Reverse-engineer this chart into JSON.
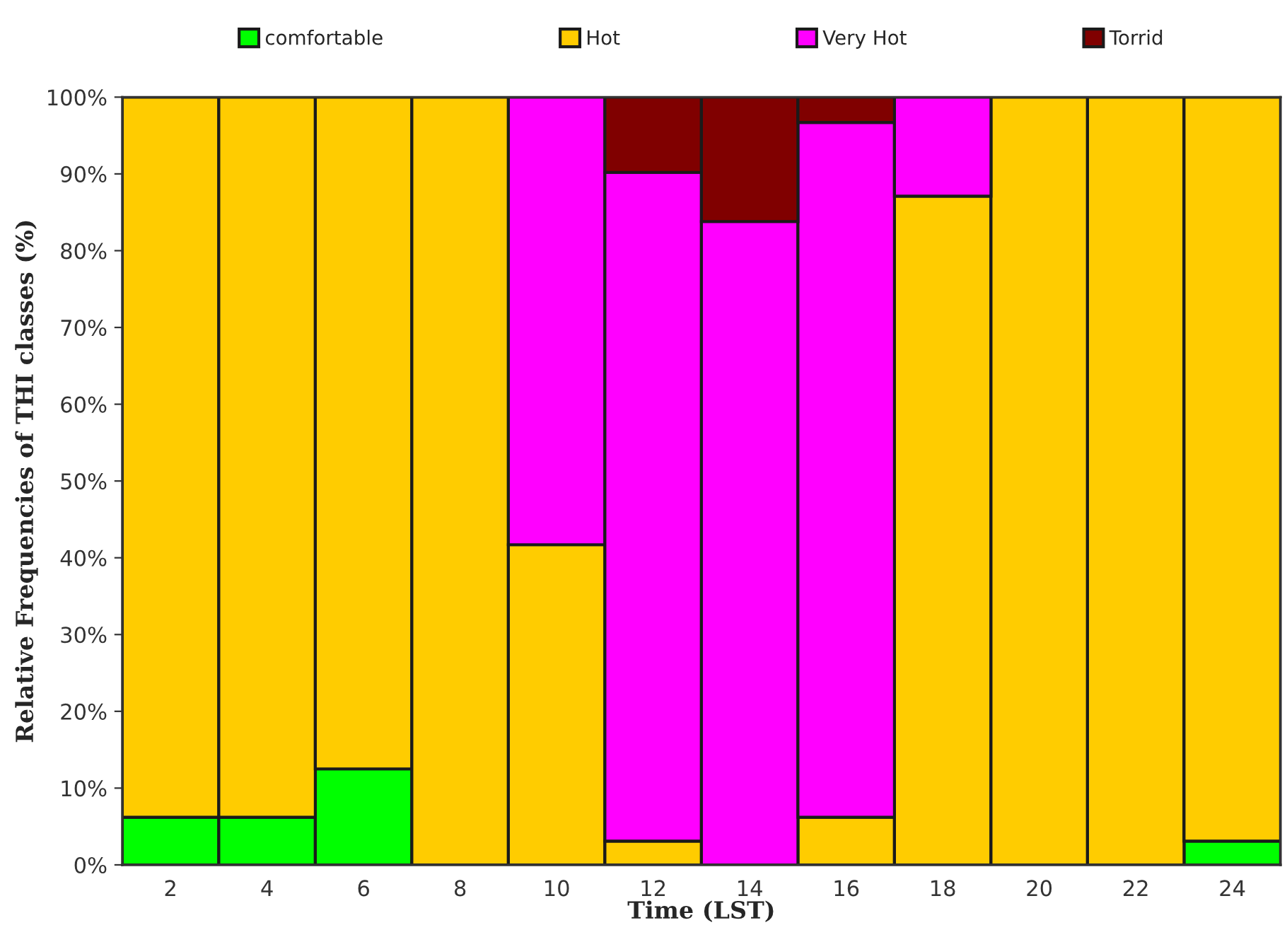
{
  "chart_data": {
    "type": "bar",
    "stacked": true,
    "xlabel": "Time (LST)",
    "ylabel": "Relative Frequencies of THI classes (%)",
    "categories": [
      "2",
      "4",
      "6",
      "8",
      "10",
      "12",
      "14",
      "16",
      "18",
      "20",
      "22",
      "24"
    ],
    "series": [
      {
        "name": "comfortable",
        "color": "#00ff00",
        "values": [
          6.2,
          6.2,
          12.5,
          null,
          null,
          null,
          null,
          null,
          null,
          null,
          null,
          3.1
        ]
      },
      {
        "name": "Hot",
        "color": "#ffcc00",
        "values": [
          93.8,
          93.8,
          87.5,
          100,
          41.7,
          3.1,
          null,
          6.2,
          87.1,
          100,
          100,
          96.9
        ]
      },
      {
        "name": "Very Hot",
        "color": "#ff00ff",
        "values": [
          null,
          null,
          null,
          null,
          58.3,
          87.1,
          83.8,
          90.5,
          12.9,
          null,
          null,
          null
        ]
      },
      {
        "name": "Torrid",
        "color": "#800000",
        "values": [
          null,
          null,
          null,
          null,
          null,
          9.8,
          16.2,
          3.3,
          null,
          null,
          null,
          null
        ]
      }
    ],
    "ylim": [
      0,
      100
    ],
    "yticks": [
      {
        "value": 0,
        "label": "0%"
      },
      {
        "value": 10,
        "label": "10%"
      },
      {
        "value": 20,
        "label": "20%"
      },
      {
        "value": 30,
        "label": "30%"
      },
      {
        "value": 40,
        "label": "40%"
      },
      {
        "value": 50,
        "label": "50%"
      },
      {
        "value": 60,
        "label": "60%"
      },
      {
        "value": 70,
        "label": "70%"
      },
      {
        "value": 80,
        "label": "80%"
      },
      {
        "value": 90,
        "label": "90%"
      },
      {
        "value": 100,
        "label": "100%"
      }
    ],
    "legend": "top"
  }
}
